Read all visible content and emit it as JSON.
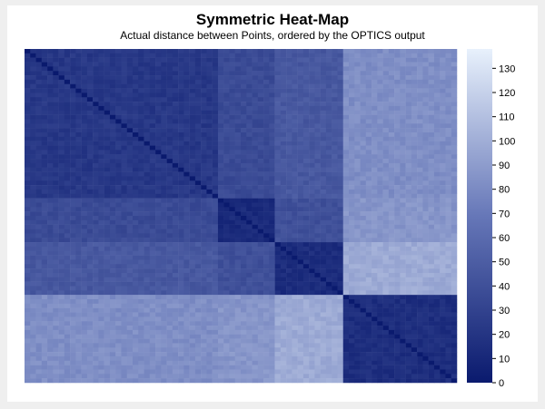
{
  "chart_data": {
    "type": "heatmap",
    "title": "Symmetric Heat-Map",
    "subtitle": "Actual distance between Points, ordered by the OPTICS output",
    "n": 76,
    "colorbar": {
      "min": 0,
      "max": 138,
      "ticks": [
        0,
        10,
        20,
        30,
        40,
        50,
        60,
        70,
        80,
        90,
        100,
        110,
        120,
        130
      ],
      "color_low": "#0a1a6e",
      "color_mid": "#6677b8",
      "color_high": "#e8f1fc"
    },
    "clusters": [
      {
        "start": 0,
        "end": 34
      },
      {
        "start": 34,
        "end": 44
      },
      {
        "start": 44,
        "end": 56
      },
      {
        "start": 56,
        "end": 76
      }
    ],
    "block_values": [
      [
        22,
        36,
        46,
        82
      ],
      [
        36,
        12,
        40,
        86
      ],
      [
        46,
        40,
        14,
        98
      ],
      [
        82,
        86,
        98,
        15
      ]
    ],
    "grid": false
  }
}
